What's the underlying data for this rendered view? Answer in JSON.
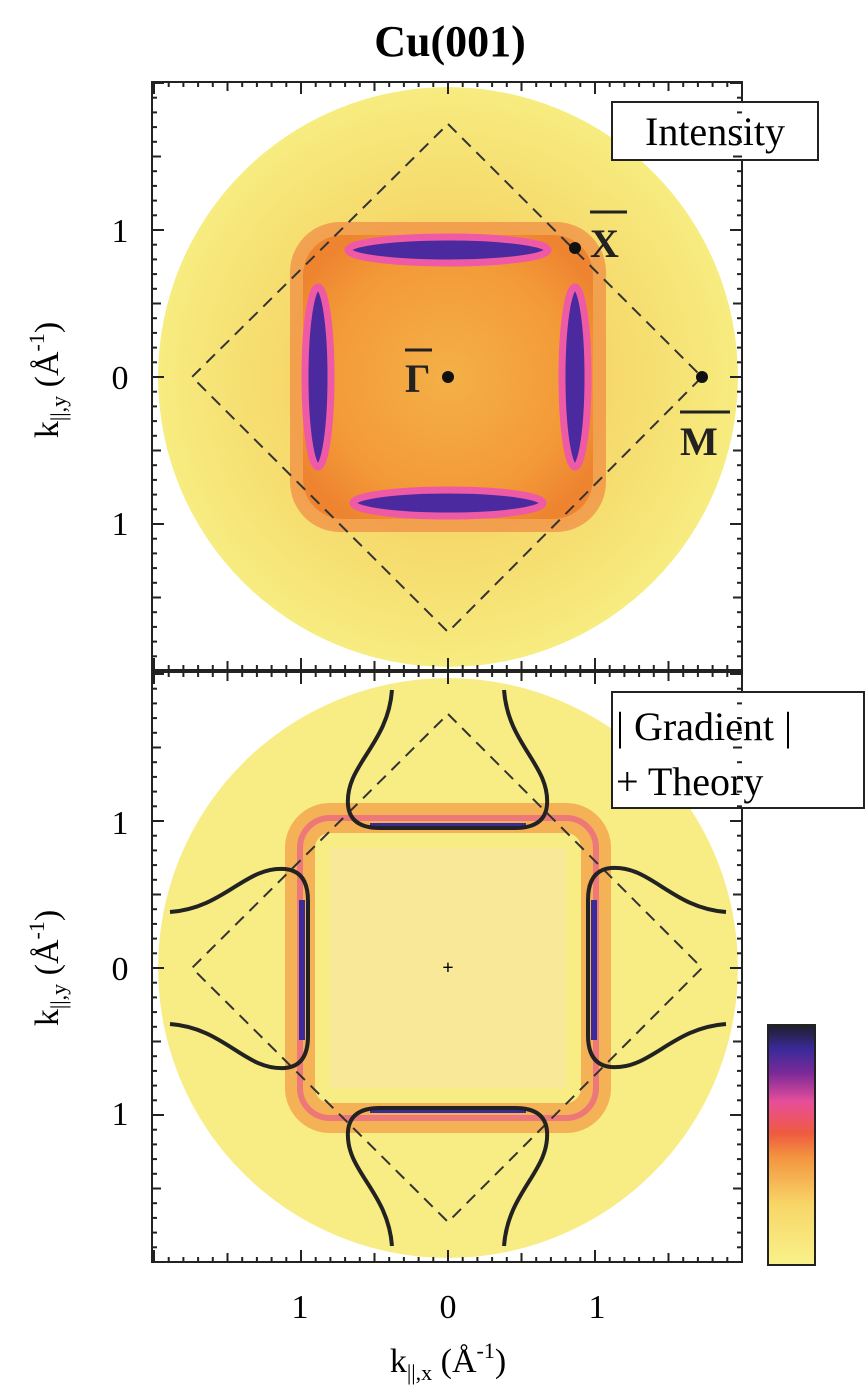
{
  "title": "Cu(001)",
  "panels": [
    {
      "label": "Intensity",
      "points": [
        "X",
        "Γ",
        "M"
      ]
    },
    {
      "label_lines": [
        "| Gradient |",
        "+ Theory"
      ]
    }
  ],
  "y_axis_label": {
    "main": "k",
    "sub": "||,y",
    "unit": "(Å",
    "sup": "-1",
    "close": ")"
  },
  "x_axis_label": {
    "main": "k",
    "sub": "||,x",
    "unit": "(Å",
    "sup": "-1",
    "close": ")"
  },
  "y_ticks": [
    "1",
    "0",
    "1"
  ],
  "x_ticks": [
    "1",
    "0",
    "1"
  ]
}
